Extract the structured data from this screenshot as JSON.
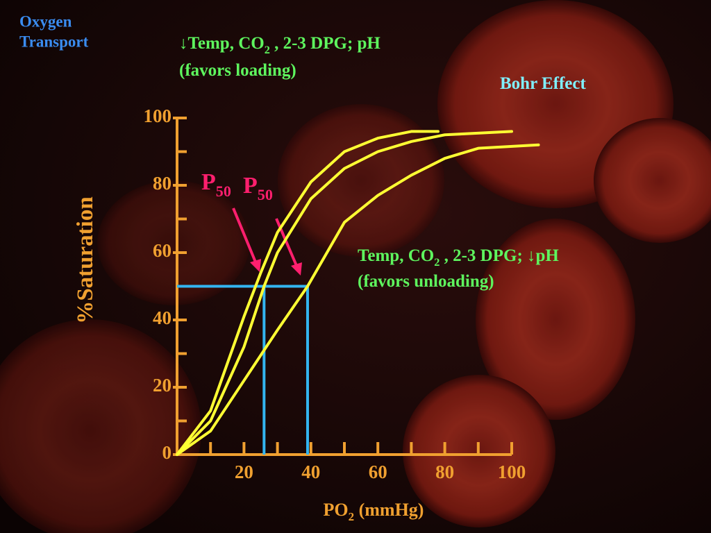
{
  "chart_data": {
    "type": "line",
    "title_lines": [
      "Oxygen",
      "Transport"
    ],
    "annotations": [
      {
        "parts": [
          {
            "text": "↓Temp, CO"
          },
          {
            "text": "2",
            "sub": true
          },
          {
            "text": " , 2-3 DPG;  pH"
          }
        ]
      },
      {
        "parts": [
          {
            "text": "(favors loading)"
          }
        ]
      },
      {
        "parts": [
          {
            "text": "Bohr Effect"
          }
        ]
      },
      {
        "parts": [
          {
            "text": "Temp, CO"
          },
          {
            "text": "2",
            "sub": true
          },
          {
            "text": " , 2-3 DPG; ↓pH"
          }
        ]
      },
      {
        "parts": [
          {
            "text": "(favors unloading)"
          }
        ]
      },
      {
        "parts": [
          {
            "text": "P"
          },
          {
            "text": "50",
            "sub": true
          }
        ]
      },
      {
        "parts": [
          {
            "text": "P"
          },
          {
            "text": "50",
            "sub": true
          }
        ]
      }
    ],
    "ylabel": {
      "parts": [
        {
          "text": "%"
        },
        {
          "text": "Saturation"
        }
      ]
    },
    "xlabel": {
      "parts": [
        {
          "text": "PO"
        },
        {
          "text": "2",
          "sub": true
        },
        {
          "text": " (mmHg)"
        }
      ]
    },
    "xlim": [
      0,
      100
    ],
    "ylim": [
      0,
      100
    ],
    "xticks": [
      20,
      40,
      60,
      80,
      100
    ],
    "xminor_ticks": [
      10,
      30,
      50,
      70,
      90
    ],
    "yticks": [
      0,
      20,
      40,
      60,
      80,
      100
    ],
    "yminor_ticks": [
      10,
      30,
      50,
      70,
      90
    ],
    "series": [
      {
        "color": "#ffff33",
        "x": [
          0,
          10,
          20,
          25,
          30,
          40,
          50,
          60,
          70,
          78
        ],
        "values": [
          0,
          13,
          41,
          54,
          66,
          81,
          90,
          94,
          96,
          96
        ]
      },
      {
        "color": "#ffff33",
        "x": [
          0,
          10,
          20,
          26,
          30,
          40,
          50,
          60,
          70,
          80,
          100
        ],
        "values": [
          0,
          10,
          32,
          50,
          60,
          76,
          85,
          90,
          93,
          95,
          96
        ]
      },
      {
        "color": "#ffff33",
        "x": [
          0,
          10,
          20,
          30,
          39,
          50,
          60,
          70,
          80,
          90,
          108
        ],
        "values": [
          0,
          7,
          22,
          37,
          50,
          69,
          77,
          83,
          88,
          91,
          92
        ]
      }
    ],
    "reference_lines": [
      {
        "x": 26,
        "y": 50
      },
      {
        "x": 39,
        "y": 50
      }
    ],
    "reference_color": "#33b5f0",
    "axis_color": "#f0a030"
  }
}
